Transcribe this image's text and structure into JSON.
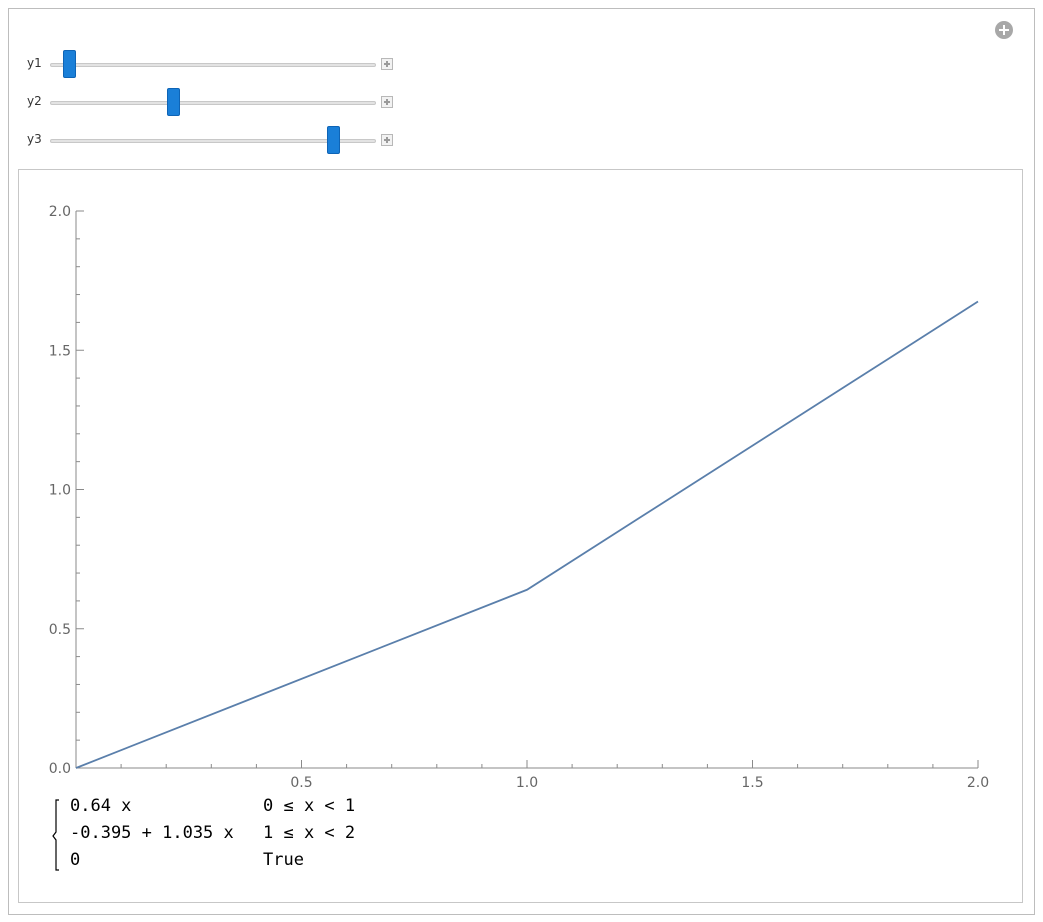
{
  "controls": {
    "sliders": [
      {
        "label": "y1",
        "value_fraction": 0.06
      },
      {
        "label": "y2",
        "value_fraction": 0.38
      },
      {
        "label": "y3",
        "value_fraction": 0.87
      }
    ]
  },
  "piecewise": [
    {
      "expr": "0.64 x",
      "cond": "0 ≤ x < 1"
    },
    {
      "expr": "-0.395 + 1.035 x",
      "cond": "1 ≤ x < 2"
    },
    {
      "expr": "0",
      "cond": "True"
    }
  ],
  "chart_data": {
    "type": "line",
    "x": [
      0,
      1,
      2
    ],
    "series": [
      {
        "values": [
          0,
          0.64,
          1.675
        ]
      }
    ],
    "xlim": [
      0,
      2
    ],
    "ylim": [
      0,
      2
    ],
    "xticks": [
      "0.5",
      "1.0",
      "1.5",
      "2.0"
    ],
    "yticks": [
      "0.0",
      "0.5",
      "1.0",
      "1.5",
      "2.0"
    ],
    "line_color": "#5a7fab",
    "axis_color": "#8a8a8a",
    "grid": false
  }
}
